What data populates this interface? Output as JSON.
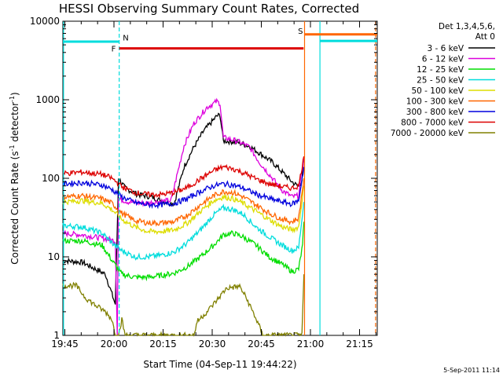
{
  "chart_data": {
    "type": "line",
    "title": "HESSI Observing Summary Count Rates, Corrected",
    "xlabel": "Start Time (04-Sep-11 19:44:22)",
    "ylabel_main": "Corrected Count Rate (s",
    "ylabel_sup1": "-1",
    "ylabel_mid": " detector",
    "ylabel_sup2": "-1",
    "ylabel_end": ")",
    "y_scale": "log",
    "ylim": [
      1,
      10000
    ],
    "x_range_minutes": [
      0,
      96
    ],
    "x_ticks": [
      {
        "t": 0.6,
        "label": "19:45"
      },
      {
        "t": 15.6,
        "label": "20:00"
      },
      {
        "t": 30.6,
        "label": "20:15"
      },
      {
        "t": 45.6,
        "label": "20:30"
      },
      {
        "t": 60.6,
        "label": "20:45"
      },
      {
        "t": 75.6,
        "label": "21:00"
      },
      {
        "t": 90.6,
        "label": "21:15"
      }
    ],
    "y_ticks": [
      {
        "v": 1,
        "label": "1"
      },
      {
        "v": 10,
        "label": "10"
      },
      {
        "v": 100,
        "label": "100"
      },
      {
        "v": 1000,
        "label": "1000"
      },
      {
        "v": 10000,
        "label": "10000"
      }
    ],
    "legend": {
      "header1": "Det 1,3,4,5,6,",
      "header2": "Att 0",
      "placement": "right"
    },
    "series": [
      {
        "name": "3 - 6 keV",
        "color": "#000000",
        "points": [
          [
            0,
            9
          ],
          [
            6,
            8.5
          ],
          [
            13,
            6
          ],
          [
            16,
            2.5
          ],
          [
            17,
            100
          ],
          [
            19,
            75
          ],
          [
            23,
            62
          ],
          [
            27,
            58
          ],
          [
            31,
            50
          ],
          [
            34,
            48
          ],
          [
            37,
            140
          ],
          [
            40,
            250
          ],
          [
            43,
            400
          ],
          [
            47,
            620
          ],
          [
            48,
            640
          ],
          [
            49,
            300
          ],
          [
            53,
            290
          ],
          [
            57,
            255
          ],
          [
            60,
            210
          ],
          [
            64,
            160
          ],
          [
            67,
            120
          ],
          [
            70,
            90
          ],
          [
            72,
            78
          ],
          [
            73,
            95
          ],
          [
            73.6,
            180
          ]
        ]
      },
      {
        "name": "6 - 12 keV",
        "color": "#dd00dd",
        "points": [
          [
            0,
            20
          ],
          [
            6,
            19
          ],
          [
            13,
            17
          ],
          [
            16,
            16
          ],
          [
            16.6,
            1
          ],
          [
            17,
            55
          ],
          [
            20,
            50
          ],
          [
            25,
            48
          ],
          [
            28,
            50
          ],
          [
            33,
            52
          ],
          [
            37,
            260
          ],
          [
            40,
            500
          ],
          [
            44,
            800
          ],
          [
            47,
            950
          ],
          [
            48,
            900
          ],
          [
            49,
            330
          ],
          [
            53,
            300
          ],
          [
            57,
            250
          ],
          [
            60,
            160
          ],
          [
            64,
            100
          ],
          [
            67,
            70
          ],
          [
            70,
            58
          ],
          [
            72,
            60
          ],
          [
            73.6,
            190
          ]
        ]
      },
      {
        "name": "12 - 25 keV",
        "color": "#00dd00",
        "points": [
          [
            0,
            16
          ],
          [
            6,
            16
          ],
          [
            12,
            14
          ],
          [
            15,
            9
          ],
          [
            18,
            6
          ],
          [
            22,
            5.5
          ],
          [
            26,
            5.5
          ],
          [
            30,
            5.8
          ],
          [
            34,
            6.2
          ],
          [
            38,
            7.5
          ],
          [
            42,
            10
          ],
          [
            46,
            14
          ],
          [
            49,
            19
          ],
          [
            52,
            20
          ],
          [
            55,
            18
          ],
          [
            59,
            14
          ],
          [
            63,
            10
          ],
          [
            67,
            8
          ],
          [
            70,
            6.5
          ],
          [
            72,
            7
          ],
          [
            73.2,
            14
          ],
          [
            73.6,
            28
          ]
        ]
      },
      {
        "name": "25 - 50 keV",
        "color": "#00dddd",
        "points": [
          [
            0,
            25
          ],
          [
            6,
            24
          ],
          [
            12,
            20
          ],
          [
            15,
            15
          ],
          [
            18,
            12
          ],
          [
            22,
            10
          ],
          [
            26,
            10
          ],
          [
            30,
            10.5
          ],
          [
            34,
            11.5
          ],
          [
            38,
            15
          ],
          [
            42,
            22
          ],
          [
            46,
            34
          ],
          [
            49,
            42
          ],
          [
            52,
            40
          ],
          [
            55,
            35
          ],
          [
            59,
            24
          ],
          [
            63,
            18
          ],
          [
            67,
            14
          ],
          [
            70,
            12
          ],
          [
            72,
            13
          ],
          [
            73.6,
            50
          ]
        ]
      },
      {
        "name": "50 - 100 keV",
        "color": "#dddd00",
        "points": [
          [
            0,
            50
          ],
          [
            6,
            52
          ],
          [
            12,
            48
          ],
          [
            15,
            40
          ],
          [
            18,
            30
          ],
          [
            22,
            24
          ],
          [
            26,
            21
          ],
          [
            30,
            21
          ],
          [
            34,
            22
          ],
          [
            38,
            27
          ],
          [
            42,
            38
          ],
          [
            46,
            52
          ],
          [
            49,
            58
          ],
          [
            52,
            55
          ],
          [
            55,
            48
          ],
          [
            59,
            38
          ],
          [
            63,
            30
          ],
          [
            67,
            24
          ],
          [
            70,
            22
          ],
          [
            72,
            24
          ],
          [
            73.6,
            80
          ]
        ]
      },
      {
        "name": "100 - 300 keV",
        "color": "#ff6600",
        "points": [
          [
            0,
            58
          ],
          [
            6,
            60
          ],
          [
            12,
            55
          ],
          [
            15,
            48
          ],
          [
            18,
            36
          ],
          [
            22,
            29
          ],
          [
            26,
            27
          ],
          [
            30,
            27
          ],
          [
            34,
            28
          ],
          [
            38,
            34
          ],
          [
            42,
            46
          ],
          [
            46,
            60
          ],
          [
            49,
            68
          ],
          [
            52,
            66
          ],
          [
            55,
            58
          ],
          [
            59,
            46
          ],
          [
            63,
            36
          ],
          [
            67,
            30
          ],
          [
            70,
            28
          ],
          [
            72,
            31
          ],
          [
            73.6,
            100
          ]
        ]
      },
      {
        "name": "300 - 800 keV",
        "color": "#0000dd",
        "points": [
          [
            0,
            85
          ],
          [
            6,
            88
          ],
          [
            12,
            82
          ],
          [
            15,
            72
          ],
          [
            18,
            58
          ],
          [
            22,
            49
          ],
          [
            26,
            46
          ],
          [
            30,
            46
          ],
          [
            34,
            48
          ],
          [
            38,
            55
          ],
          [
            42,
            68
          ],
          [
            46,
            80
          ],
          [
            49,
            85
          ],
          [
            52,
            82
          ],
          [
            55,
            75
          ],
          [
            59,
            63
          ],
          [
            63,
            55
          ],
          [
            67,
            50
          ],
          [
            70,
            47
          ],
          [
            72,
            52
          ],
          [
            73.6,
            140
          ]
        ]
      },
      {
        "name": "800 - 7000 keV",
        "color": "#dd0000",
        "points": [
          [
            0,
            115
          ],
          [
            6,
            120
          ],
          [
            12,
            112
          ],
          [
            15,
            100
          ],
          [
            18,
            78
          ],
          [
            22,
            66
          ],
          [
            26,
            62
          ],
          [
            30,
            62
          ],
          [
            34,
            66
          ],
          [
            38,
            76
          ],
          [
            42,
            98
          ],
          [
            46,
            125
          ],
          [
            49,
            140
          ],
          [
            52,
            132
          ],
          [
            55,
            118
          ],
          [
            59,
            98
          ],
          [
            63,
            85
          ],
          [
            67,
            78
          ],
          [
            70,
            75
          ],
          [
            72,
            80
          ],
          [
            73.6,
            190
          ]
        ]
      },
      {
        "name": "7000 - 20000 keV",
        "color": "#808000",
        "points": [
          [
            0,
            4.3
          ],
          [
            4,
            4.3
          ],
          [
            7,
            3
          ],
          [
            10,
            2.4
          ],
          [
            13,
            2
          ],
          [
            15,
            1.6
          ],
          [
            16,
            1
          ],
          [
            17,
            1
          ],
          [
            18,
            1.6
          ],
          [
            19,
            1
          ],
          [
            40,
            1
          ],
          [
            41,
            1.5
          ],
          [
            44,
            2
          ],
          [
            47,
            2.8
          ],
          [
            50,
            4
          ],
          [
            54,
            4.2
          ],
          [
            56,
            3
          ],
          [
            58,
            2
          ],
          [
            60,
            1.3
          ],
          [
            61,
            1
          ],
          [
            73,
            1
          ],
          [
            73.6,
            6
          ]
        ]
      }
    ],
    "attenuator_state": [
      {
        "t0": 0,
        "t1": 17.2,
        "value": 5500,
        "color": "#00dddd"
      },
      {
        "t0": 17.2,
        "t1": 73.5,
        "value": 4500,
        "color": "#dd0000"
      },
      {
        "t0": 73.8,
        "t1": 78.5,
        "value": 6800,
        "color": "#ff6600"
      },
      {
        "t0": 78.5,
        "t1": 96,
        "value": 5600,
        "color": "#00dddd"
      },
      {
        "t0": 78.5,
        "t1": 96,
        "value": 6800,
        "color": "#ff6600"
      }
    ],
    "annotations": [
      {
        "text": "F",
        "t": 14.8,
        "v": 4400,
        "color": "#dd0000"
      },
      {
        "text": "N",
        "t": 18.3,
        "v": 6100,
        "color": "#00dddd"
      },
      {
        "text": "S",
        "t": 71.8,
        "v": 7400,
        "color": "#ff6600"
      }
    ],
    "vertical_markers": [
      {
        "t": 0.2,
        "style": "solid",
        "color": "#00dddd"
      },
      {
        "t": 17.2,
        "style": "dashed",
        "color": "#00dddd"
      },
      {
        "t": 73.8,
        "style": "solid",
        "color": "#ff6600"
      },
      {
        "t": 78.5,
        "style": "solid",
        "color": "#00dddd"
      },
      {
        "t": 95.5,
        "style": "dashed",
        "color": "#ff6600"
      }
    ],
    "datestamp": "5-Sep-2011 11:14"
  }
}
